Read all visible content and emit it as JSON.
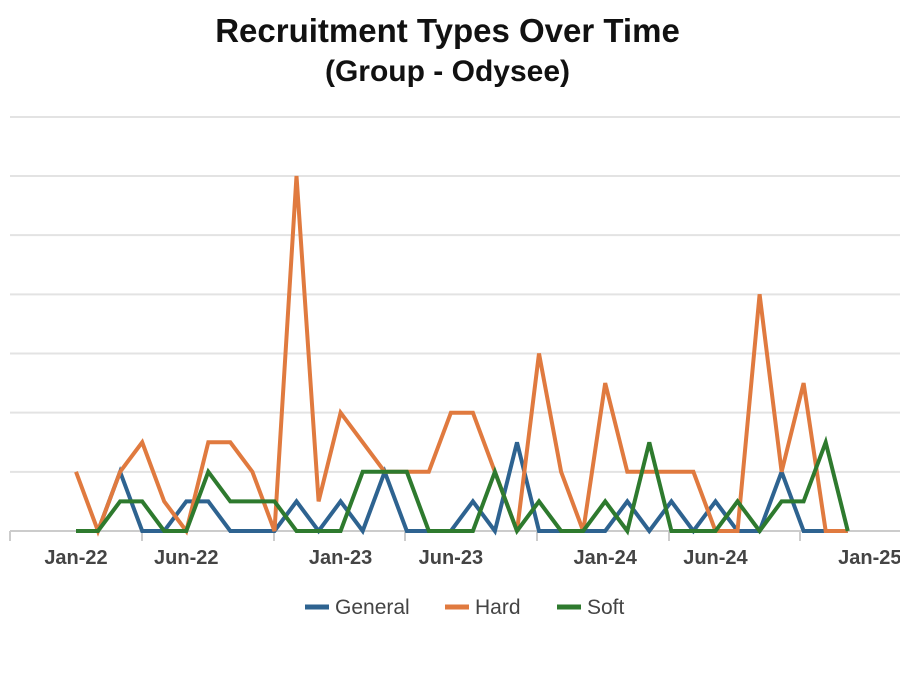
{
  "chart_data": {
    "type": "line",
    "title": "Recruitment Types Over Time",
    "subtitle": "(Group - Odysee)",
    "xlabel": "",
    "ylabel": "",
    "ylim": [
      0,
      6
    ],
    "grid": true,
    "legend_position": "bottom",
    "x_ticks": [
      "Jan-22",
      "Jun-22",
      "Jan-23",
      "Jun-23",
      "Jan-24",
      "Jun-24",
      "Jan-25"
    ],
    "x": [
      "Jan-22",
      "Feb-22",
      "Mar-22",
      "Apr-22",
      "May-22",
      "Jun-22",
      "Jul-22",
      "Aug-22",
      "Sep-22",
      "Oct-22",
      "Nov-22",
      "Dec-22",
      "Jan-23",
      "Feb-23",
      "Mar-23",
      "Apr-23",
      "May-23",
      "Jun-23",
      "Jul-23",
      "Aug-23",
      "Sep-23",
      "Oct-23",
      "Nov-23",
      "Dec-23",
      "Jan-24",
      "Feb-24",
      "Mar-24",
      "Apr-24",
      "May-24",
      "Jun-24",
      "Jul-24",
      "Aug-24",
      "Sep-24",
      "Oct-24",
      "Nov-24",
      "Dec-24"
    ],
    "series": [
      {
        "name": "General",
        "color": "#2e6390",
        "values": [
          0,
          0,
          1,
          0,
          0,
          0.5,
          0.5,
          0,
          0,
          0,
          0.5,
          0,
          0.5,
          0,
          1,
          0,
          0,
          0,
          0.5,
          0,
          1.5,
          0,
          0,
          0,
          0,
          0.5,
          0,
          0.5,
          0,
          0.5,
          0,
          0,
          1,
          0,
          0,
          0
        ]
      },
      {
        "name": "Hard",
        "color": "#e07a3f",
        "values": [
          1,
          0,
          1,
          1.5,
          0.5,
          0,
          1.5,
          1.5,
          1,
          0,
          6,
          0.5,
          2,
          1.5,
          1,
          1,
          1,
          2,
          2,
          1,
          0,
          3,
          1,
          0,
          2.5,
          1,
          1,
          1,
          1,
          0,
          0,
          4,
          1,
          2.5,
          0,
          0
        ]
      },
      {
        "name": "Soft",
        "color": "#2e7a2e",
        "values": [
          0,
          0,
          0.5,
          0.5,
          0,
          0,
          1,
          0.5,
          0.5,
          0.5,
          0,
          0,
          0,
          1,
          1,
          1,
          0,
          0,
          0,
          1,
          0,
          0.5,
          0,
          0,
          0.5,
          0,
          1.5,
          0,
          0,
          0,
          0.5,
          0,
          0.5,
          0.5,
          1.5,
          0
        ]
      }
    ]
  }
}
